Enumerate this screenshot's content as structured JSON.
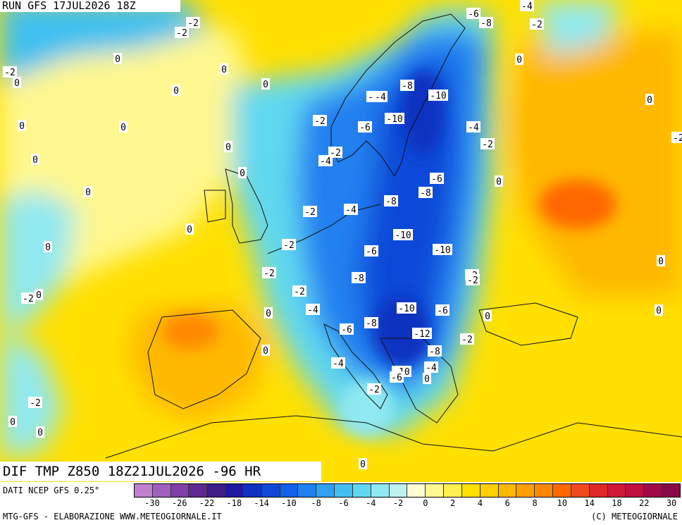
{
  "header": {
    "run_label": "RUN GFS 17JUL2026 18Z",
    "field_label": "DIF TMP Z850 18Z21JUL2026 -96 HR"
  },
  "footer": {
    "source": "DATI NCEP GFS 0.25°",
    "credit": "MTG-GFS - ELABORAZIONE WWW.METEOGIORNALE.IT",
    "copyright": "(C) METEOGIORNALE"
  },
  "legend": {
    "colors": [
      "#c080d0",
      "#a060c0",
      "#8040a8",
      "#602890",
      "#401c88",
      "#2018a0",
      "#1030c0",
      "#1048d8",
      "#1060e8",
      "#2080f0",
      "#30a0f0",
      "#40c0f0",
      "#60d8f0",
      "#90e8f0",
      "#c0f0f0",
      "#fffbd0",
      "#fff890",
      "#fff050",
      "#ffe000",
      "#ffd000",
      "#ffb800",
      "#ffa000",
      "#ff8800",
      "#ff6800",
      "#f04820",
      "#e02828",
      "#d01838",
      "#c01040",
      "#a00848",
      "#880848"
    ],
    "tick_labels": [
      "-30",
      "-26",
      "-22",
      "-18",
      "-14",
      "-10",
      "-8",
      "-6",
      "-4",
      "-2",
      "0",
      "2",
      "4",
      "6",
      "8",
      "10",
      "14",
      "18",
      "22",
      "30"
    ]
  },
  "contour_labels": [
    {
      "text": "-6"
    },
    {
      "text": "-4"
    },
    {
      "text": "-8"
    },
    {
      "text": "-2"
    },
    {
      "text": "-2"
    },
    {
      "text": "-2"
    },
    {
      "text": "0"
    },
    {
      "text": "-2"
    },
    {
      "text": "0"
    },
    {
      "text": "0"
    },
    {
      "text": "0"
    },
    {
      "text": "0"
    },
    {
      "text": "0"
    },
    {
      "text": "-2"
    },
    {
      "text": "-4"
    },
    {
      "text": "-8"
    },
    {
      "text": "-10"
    },
    {
      "text": "0"
    },
    {
      "text": "0"
    },
    {
      "text": "0"
    },
    {
      "text": "-2"
    },
    {
      "text": "-10"
    },
    {
      "text": "-6"
    },
    {
      "text": "-4"
    },
    {
      "text": "-2"
    },
    {
      "text": "0"
    },
    {
      "text": "-2"
    },
    {
      "text": "-4"
    },
    {
      "text": "0"
    },
    {
      "text": "0"
    },
    {
      "text": "-6"
    },
    {
      "text": "-8"
    },
    {
      "text": "0"
    },
    {
      "text": "-2"
    },
    {
      "text": "-4"
    },
    {
      "text": "-8"
    },
    {
      "text": "0"
    },
    {
      "text": "0"
    },
    {
      "text": "-2"
    },
    {
      "text": "-10"
    },
    {
      "text": "-2"
    },
    {
      "text": "-6"
    },
    {
      "text": "-10"
    },
    {
      "text": "0"
    },
    {
      "text": "-2"
    },
    {
      "text": "-8"
    },
    {
      "text": "-2"
    },
    {
      "text": "-2"
    },
    {
      "text": "-4"
    },
    {
      "text": "-10"
    },
    {
      "text": "-6"
    },
    {
      "text": "0"
    },
    {
      "text": "0"
    },
    {
      "text": "-2"
    },
    {
      "text": "-6"
    },
    {
      "text": "-8"
    },
    {
      "text": "-12"
    },
    {
      "text": "-2"
    },
    {
      "text": "0"
    },
    {
      "text": "-8"
    },
    {
      "text": "-4"
    },
    {
      "text": "-4"
    },
    {
      "text": "-10"
    },
    {
      "text": "-6"
    },
    {
      "text": "0"
    },
    {
      "text": "-2"
    },
    {
      "text": "-2"
    },
    {
      "text": "0"
    },
    {
      "text": "0"
    },
    {
      "text": "0"
    },
    {
      "text": "0"
    },
    {
      "text": "-2"
    },
    {
      "text": "0"
    },
    {
      "text": "0"
    }
  ]
}
